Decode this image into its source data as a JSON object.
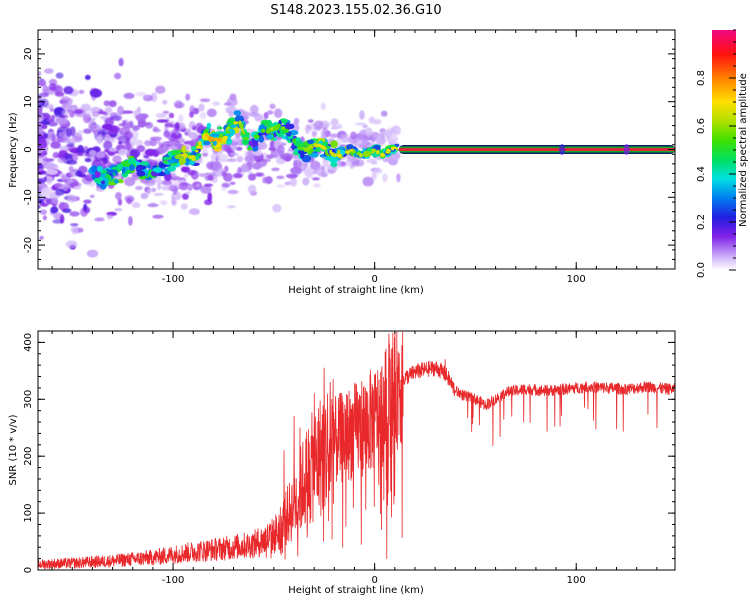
{
  "title": "S148.2023.155.02.36.G10",
  "colors": {
    "snr_line": "#e8282a",
    "tone_core": "#e8203a",
    "tone_halo": "#18a828",
    "tone_outer": "#0a2060"
  },
  "chart_data": [
    {
      "type": "heatmap",
      "name": "spectrogram",
      "xlabel": "Height of straight line (km)",
      "ylabel": "Frequency (Hz)",
      "xlim": [
        -167,
        149
      ],
      "ylim": [
        -25,
        25
      ],
      "xticks": [
        -100,
        0,
        100
      ],
      "yticks": [
        -20,
        -10,
        0,
        10,
        20
      ],
      "colorbar": {
        "label": "Normalized spectral amplitude",
        "range": [
          0,
          1
        ],
        "ticks": [
          "0.0",
          "0.2",
          "0.4",
          "0.6",
          "0.8"
        ],
        "tick_values": [
          0.0,
          0.2,
          0.4,
          0.6,
          0.8
        ]
      },
      "tone": {
        "x_start": 12,
        "x_end": 149,
        "frequency": 0
      },
      "ridge": [
        [
          -140,
          -5,
          0.35
        ],
        [
          -135,
          -6,
          0.45
        ],
        [
          -128,
          -5,
          0.55
        ],
        [
          -120,
          -3,
          0.5
        ],
        [
          -113,
          -5,
          0.5
        ],
        [
          -105,
          -3,
          0.45
        ],
        [
          -100,
          -2,
          0.5
        ],
        [
          -95,
          -1,
          0.6
        ],
        [
          -90,
          -2,
          0.55
        ],
        [
          -85,
          3,
          0.6
        ],
        [
          -80,
          2,
          0.7
        ],
        [
          -75,
          2,
          0.6
        ],
        [
          -70,
          5,
          0.65
        ],
        [
          -67,
          6,
          0.55
        ],
        [
          -62,
          0,
          0.4
        ],
        [
          -57,
          4,
          0.45
        ],
        [
          -52,
          4,
          0.5
        ],
        [
          -47,
          5,
          0.5
        ],
        [
          -42,
          3,
          0.45
        ],
        [
          -37,
          0,
          0.45
        ],
        [
          -33,
          0,
          0.55
        ],
        [
          -28,
          1,
          0.6
        ],
        [
          -24,
          0,
          0.55
        ],
        [
          -20,
          -1,
          0.6
        ],
        [
          -16,
          -1,
          0.55
        ],
        [
          -12,
          0,
          0.55
        ],
        [
          -8,
          -1,
          0.5
        ],
        [
          -4,
          -1,
          0.55
        ],
        [
          0,
          0,
          0.55
        ],
        [
          4,
          -1,
          0.55
        ],
        [
          8,
          0,
          0.6
        ],
        [
          11,
          0,
          0.6
        ]
      ]
    },
    {
      "type": "line",
      "name": "snr",
      "xlabel": "Height of straight line (km)",
      "ylabel": "SNR (10 * v/v)",
      "xlim": [
        -167,
        149
      ],
      "ylim": [
        0,
        420
      ],
      "xticks": [
        -100,
        0,
        100
      ],
      "yticks": [
        0,
        100,
        200,
        300,
        400
      ],
      "envelope": [
        [
          -167,
          10
        ],
        [
          -150,
          12
        ],
        [
          -130,
          16
        ],
        [
          -110,
          22
        ],
        [
          -90,
          32
        ],
        [
          -75,
          38
        ],
        [
          -60,
          45
        ],
        [
          -50,
          60
        ],
        [
          -45,
          85
        ],
        [
          -40,
          115
        ],
        [
          -35,
          155
        ],
        [
          -30,
          185
        ],
        [
          -25,
          210
        ],
        [
          -20,
          225
        ],
        [
          -15,
          235
        ],
        [
          -10,
          245
        ],
        [
          -5,
          255
        ],
        [
          0,
          265
        ],
        [
          4,
          280
        ],
        [
          7,
          300
        ],
        [
          10,
          320
        ],
        [
          14,
          335
        ],
        [
          20,
          348
        ],
        [
          25,
          352
        ],
        [
          30,
          355
        ],
        [
          33,
          350
        ],
        [
          36,
          340
        ],
        [
          40,
          315
        ],
        [
          45,
          305
        ],
        [
          50,
          300
        ],
        [
          55,
          290
        ],
        [
          60,
          300
        ],
        [
          65,
          312
        ],
        [
          75,
          318
        ],
        [
          85,
          315
        ],
        [
          95,
          318
        ],
        [
          105,
          322
        ],
        [
          115,
          320
        ],
        [
          125,
          318
        ],
        [
          135,
          322
        ],
        [
          145,
          318
        ],
        [
          149,
          318
        ]
      ],
      "notable_points": [
        [
          -45,
          210
        ],
        [
          -40,
          270
        ],
        [
          -37,
          250
        ],
        [
          -30,
          310
        ],
        [
          -25,
          355
        ],
        [
          -22,
          330
        ],
        [
          7,
          415
        ],
        [
          6,
          20
        ],
        [
          10,
          130
        ],
        [
          14,
          270
        ],
        [
          35,
          370
        ],
        [
          52,
          255
        ],
        [
          68,
          270
        ],
        [
          120,
          248
        ],
        [
          140,
          250
        ]
      ]
    }
  ]
}
